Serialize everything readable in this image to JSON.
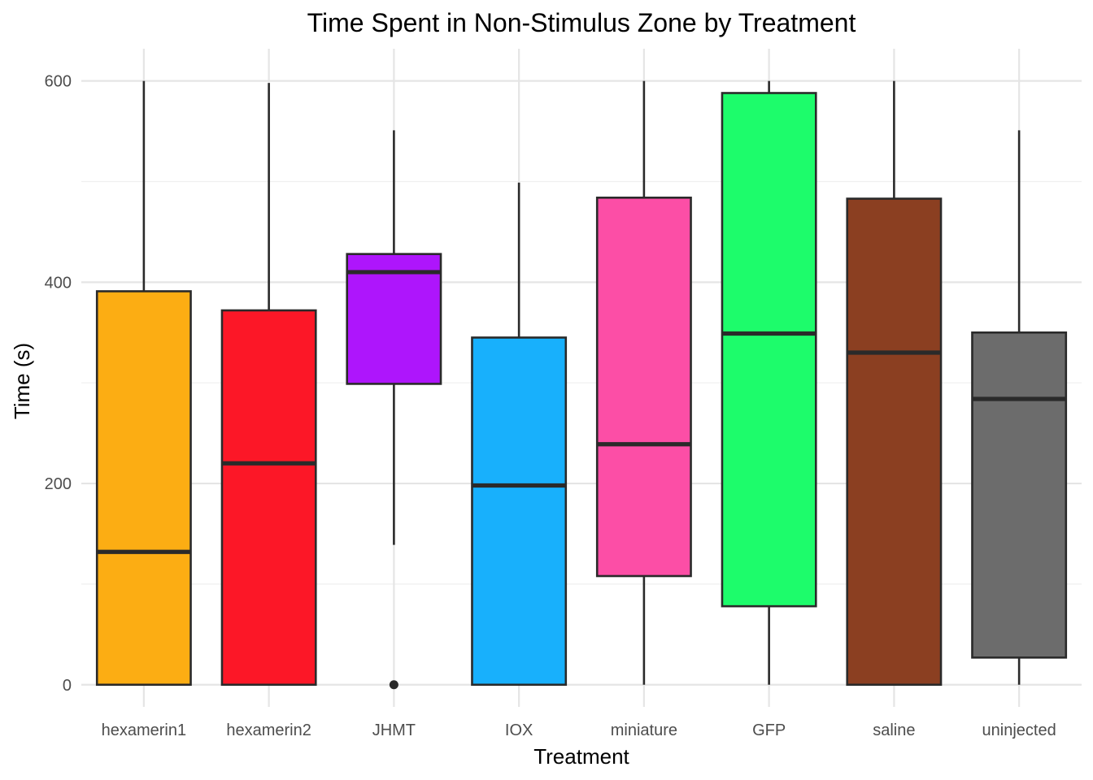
{
  "chart_data": {
    "type": "boxplot",
    "title": "Time Spent in Non-Stimulus Zone by Treatment",
    "xlabel": "Treatment",
    "ylabel": "Time (s)",
    "ylim": [
      -22,
      632
    ],
    "yticks": [
      0,
      200,
      400,
      600
    ],
    "ytick_labels": [
      "0",
      "200",
      "400",
      "600"
    ],
    "minor_yticks": [
      100,
      300,
      500
    ],
    "grid": true,
    "legend": "none",
    "categories": [
      "hexamerin1",
      "hexamerin2",
      "JHMT",
      "IOX",
      "miniature",
      "GFP",
      "saline",
      "uninjected"
    ],
    "series": [
      {
        "name": "hexamerin1",
        "min": 0,
        "q1": 0,
        "median": 132,
        "q3": 391,
        "max": 600,
        "outliers": [],
        "color": "#FCAD13"
      },
      {
        "name": "hexamerin2",
        "min": 0,
        "q1": 0,
        "median": 220,
        "q3": 372,
        "max": 598,
        "outliers": [],
        "color": "#FC1727"
      },
      {
        "name": "JHMT",
        "min": 139,
        "q1": 299,
        "median": 410,
        "q3": 428,
        "max": 551,
        "outliers": [
          0
        ],
        "color": "#AE15FC"
      },
      {
        "name": "IOX",
        "min": 0,
        "q1": 0,
        "median": 198,
        "q3": 345,
        "max": 499,
        "outliers": [],
        "color": "#18B0FC"
      },
      {
        "name": "miniature",
        "min": 0,
        "q1": 108,
        "median": 239,
        "q3": 484,
        "max": 600,
        "outliers": [],
        "color": "#FC4EA6"
      },
      {
        "name": "GFP",
        "min": 0,
        "q1": 78,
        "median": 349,
        "q3": 588,
        "max": 600,
        "outliers": [],
        "color": "#1DFC6B"
      },
      {
        "name": "saline",
        "min": 0,
        "q1": 0,
        "median": 330,
        "q3": 483,
        "max": 600,
        "outliers": [],
        "color": "#8B3F21"
      },
      {
        "name": "uninjected",
        "min": 0,
        "q1": 27,
        "median": 284,
        "q3": 350,
        "max": 551,
        "outliers": [],
        "color": "#6C6C6C"
      }
    ]
  }
}
